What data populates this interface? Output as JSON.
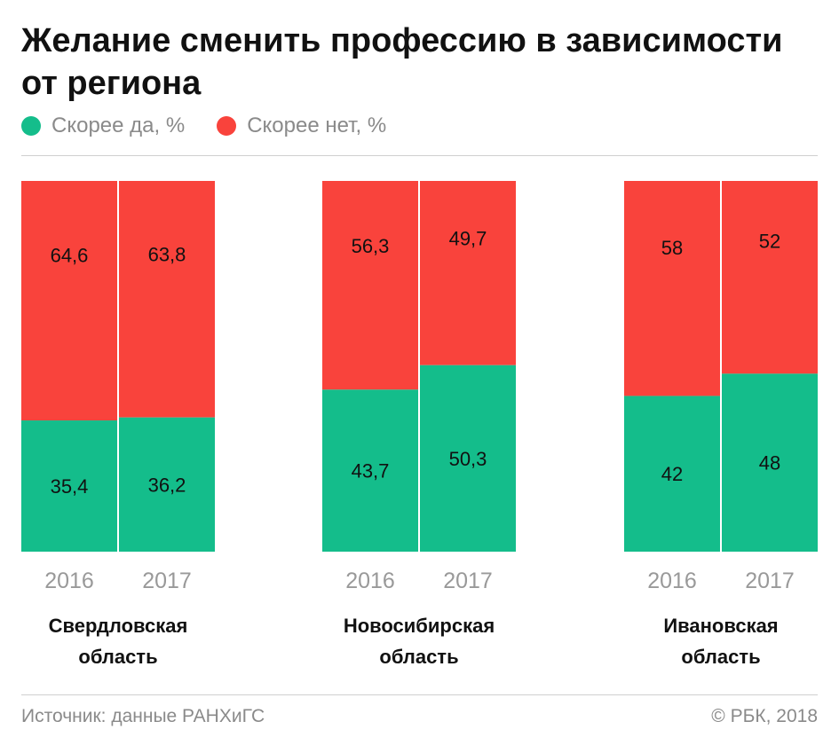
{
  "title": "Желание сменить профессию в зависимости от региона",
  "legend": {
    "yes_label": "Скорее да, %",
    "no_label": "Скорее нет, %"
  },
  "colors": {
    "yes": "#14bd8b",
    "no": "#f9433c",
    "year_text": "#999999"
  },
  "footer": {
    "source": "Источник: данные РАНХиГС",
    "copyright": "© РБК, 2018"
  },
  "chart_data": {
    "type": "bar",
    "stacked": true,
    "normalized_to": 100,
    "groups": [
      {
        "name": "Свердловская\nобласть",
        "years": [
          "2016",
          "2017"
        ],
        "yes": [
          35.4,
          36.2
        ],
        "no": [
          64.6,
          63.8
        ],
        "yes_labels": [
          "35,4",
          "36,2"
        ],
        "no_labels": [
          "64,6",
          "63,8"
        ]
      },
      {
        "name": "Новосибирская\nобласть",
        "years": [
          "2016",
          "2017"
        ],
        "yes": [
          43.7,
          50.3
        ],
        "no": [
          56.3,
          49.7
        ],
        "yes_labels": [
          "43,7",
          "50,3"
        ],
        "no_labels": [
          "56,3",
          "49,7"
        ]
      },
      {
        "name": "Ивановская\nобласть",
        "years": [
          "2016",
          "2017"
        ],
        "yes": [
          42,
          48
        ],
        "no": [
          58,
          52
        ],
        "yes_labels": [
          "42",
          "48"
        ],
        "no_labels": [
          "58",
          "52"
        ]
      }
    ],
    "series": [
      {
        "name": "Скорее да, %"
      },
      {
        "name": "Скорее нет, %"
      }
    ]
  }
}
